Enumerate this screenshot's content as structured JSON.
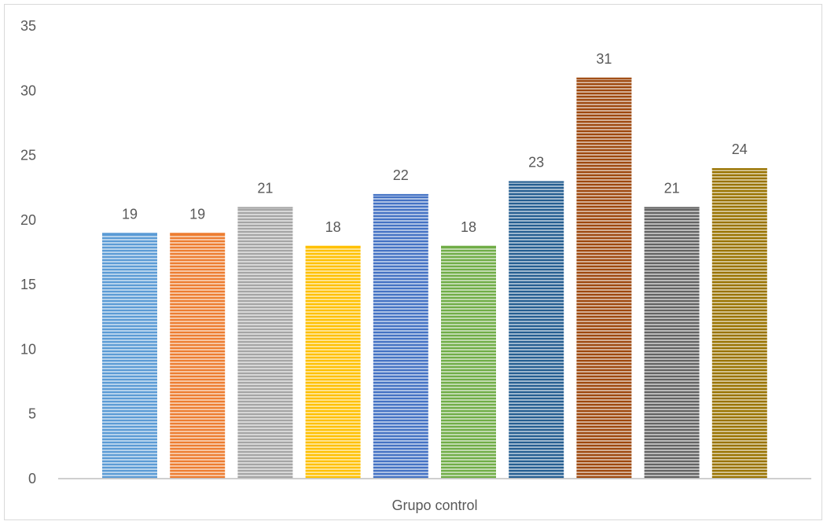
{
  "chart_data": {
    "type": "bar",
    "title": "",
    "xlabel": "",
    "ylabel": "",
    "categories": [
      "Grupo control"
    ],
    "series": [
      {
        "values": [
          19
        ],
        "color": "#5B9BD5"
      },
      {
        "values": [
          19
        ],
        "color": "#ED7D31"
      },
      {
        "values": [
          21
        ],
        "color": "#A5A5A5"
      },
      {
        "values": [
          18
        ],
        "color": "#FFC000"
      },
      {
        "values": [
          22
        ],
        "color": "#4472C4"
      },
      {
        "values": [
          18
        ],
        "color": "#70AD47"
      },
      {
        "values": [
          23
        ],
        "color": "#255E91"
      },
      {
        "values": [
          31
        ],
        "color": "#9E480E"
      },
      {
        "values": [
          21
        ],
        "color": "#636363"
      },
      {
        "values": [
          24
        ],
        "color": "#997300"
      }
    ],
    "ylim": [
      0,
      35
    ],
    "yticks": [
      0,
      5,
      10,
      15,
      20,
      25,
      30,
      35
    ],
    "grid": false,
    "legend": "none",
    "data_labels": true,
    "fill_pattern": "horizontal-stripes"
  }
}
